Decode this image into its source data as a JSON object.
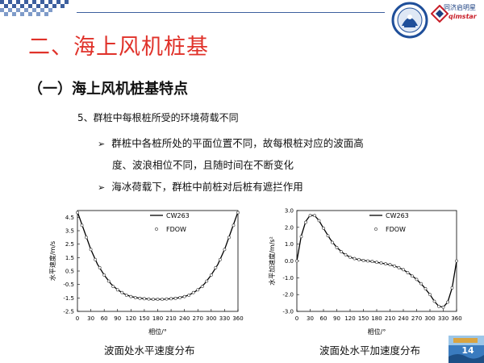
{
  "slide": {
    "title": "二、海上风机桩基",
    "subtitle": "（一）海上风机桩基特点",
    "point": "5、群桩中每根桩所受的环境荷载不同",
    "bullets": [
      "群桩中各桩所处的平面位置不同，故每根桩对应的波面高",
      "度、波浪相位不同，且随时间在不断变化",
      "海冰荷载下，群桩中前桩对后桩有遮拦作用"
    ],
    "bullet_glyph": "➢",
    "page_number": "14",
    "brand": {
      "cn": "同济启明星",
      "en": "qimstar"
    }
  },
  "chart_data": [
    {
      "type": "line",
      "caption": "波面处水平速度分布",
      "xlabel": "相位/°",
      "ylabel": "水平速度/m/s",
      "xlim": [
        0,
        360
      ],
      "ylim": [
        -2.5,
        5.0
      ],
      "x_ticks": [
        0,
        30,
        60,
        90,
        120,
        150,
        180,
        210,
        240,
        270,
        300,
        330,
        360
      ],
      "y_ticks": [
        -2.5,
        -1.5,
        -0.5,
        0.5,
        1.5,
        2.5,
        3.5,
        4.5
      ],
      "y_tick_labels": [
        "-2.5",
        "-1.5",
        "-0.5",
        "0.5",
        "1.5",
        "2.5",
        "3.5",
        "4.5"
      ],
      "grid": false,
      "legend_position": "top-right",
      "series": [
        {
          "name": "CW263",
          "style": "solid",
          "x": [
            0,
            15,
            30,
            45,
            60,
            75,
            90,
            105,
            120,
            135,
            150,
            165,
            180,
            195,
            210,
            225,
            240,
            255,
            270,
            285,
            300,
            315,
            330,
            345,
            360
          ],
          "y": [
            4.9,
            3.5,
            2.1,
            1.0,
            0.2,
            -0.45,
            -0.9,
            -1.2,
            -1.4,
            -1.5,
            -1.55,
            -1.6,
            -1.6,
            -1.6,
            -1.55,
            -1.5,
            -1.4,
            -1.2,
            -0.9,
            -0.45,
            0.2,
            1.0,
            2.1,
            3.5,
            4.9
          ]
        },
        {
          "name": "FDOW",
          "style": "markers",
          "x": [
            0,
            10,
            20,
            30,
            40,
            50,
            60,
            70,
            80,
            90,
            100,
            110,
            120,
            130,
            140,
            150,
            160,
            170,
            180,
            190,
            200,
            210,
            220,
            230,
            240,
            250,
            260,
            270,
            280,
            290,
            300,
            310,
            320,
            330,
            340,
            350,
            360
          ],
          "y": [
            4.85,
            3.9,
            3.0,
            2.1,
            1.35,
            0.75,
            0.2,
            -0.25,
            -0.65,
            -0.9,
            -1.1,
            -1.3,
            -1.4,
            -1.48,
            -1.53,
            -1.56,
            -1.58,
            -1.6,
            -1.6,
            -1.6,
            -1.58,
            -1.56,
            -1.53,
            -1.48,
            -1.4,
            -1.3,
            -1.1,
            -0.9,
            -0.65,
            -0.25,
            0.2,
            0.75,
            1.35,
            2.1,
            3.0,
            3.9,
            4.85
          ]
        }
      ]
    },
    {
      "type": "line",
      "caption": "波面处水平加速度分布",
      "xlabel": "相位/°",
      "ylabel": "水平加速度/m/s²",
      "xlim": [
        0,
        360
      ],
      "ylim": [
        -3.0,
        3.0
      ],
      "x_ticks": [
        0,
        30,
        60,
        90,
        120,
        150,
        180,
        210,
        240,
        270,
        300,
        330,
        360
      ],
      "y_ticks": [
        -3,
        -2,
        -1,
        0,
        1,
        2,
        3
      ],
      "y_tick_labels": [
        "-3.0",
        "-2.0",
        "-1.0",
        "0.0",
        "1.0",
        "2.0",
        "3.0"
      ],
      "grid": false,
      "legend_position": "top-right",
      "series": [
        {
          "name": "CW263",
          "style": "solid",
          "x": [
            0,
            10,
            20,
            30,
            40,
            50,
            60,
            75,
            90,
            105,
            120,
            135,
            150,
            165,
            180,
            195,
            210,
            225,
            240,
            255,
            270,
            285,
            300,
            310,
            320,
            330,
            340,
            350,
            360
          ],
          "y": [
            0.0,
            1.5,
            2.35,
            2.72,
            2.7,
            2.4,
            1.95,
            1.3,
            0.8,
            0.45,
            0.22,
            0.1,
            0.03,
            -0.02,
            -0.08,
            -0.15,
            -0.22,
            -0.35,
            -0.52,
            -0.78,
            -1.1,
            -1.5,
            -2.0,
            -2.4,
            -2.7,
            -2.75,
            -2.45,
            -1.6,
            0.0
          ]
        },
        {
          "name": "FDOW",
          "style": "markers",
          "x": [
            0,
            10,
            20,
            30,
            40,
            50,
            60,
            70,
            80,
            90,
            100,
            110,
            120,
            130,
            140,
            150,
            160,
            170,
            180,
            190,
            200,
            210,
            220,
            230,
            240,
            250,
            260,
            270,
            280,
            290,
            300,
            310,
            320,
            330,
            340,
            350,
            360
          ],
          "y": [
            0.0,
            1.45,
            2.3,
            2.7,
            2.7,
            2.4,
            1.95,
            1.5,
            1.1,
            0.8,
            0.55,
            0.37,
            0.22,
            0.14,
            0.08,
            0.03,
            0.0,
            -0.03,
            -0.08,
            -0.12,
            -0.17,
            -0.22,
            -0.3,
            -0.4,
            -0.52,
            -0.7,
            -0.9,
            -1.1,
            -1.35,
            -1.65,
            -2.0,
            -2.4,
            -2.7,
            -2.75,
            -2.45,
            -1.6,
            0.0
          ]
        }
      ]
    }
  ]
}
